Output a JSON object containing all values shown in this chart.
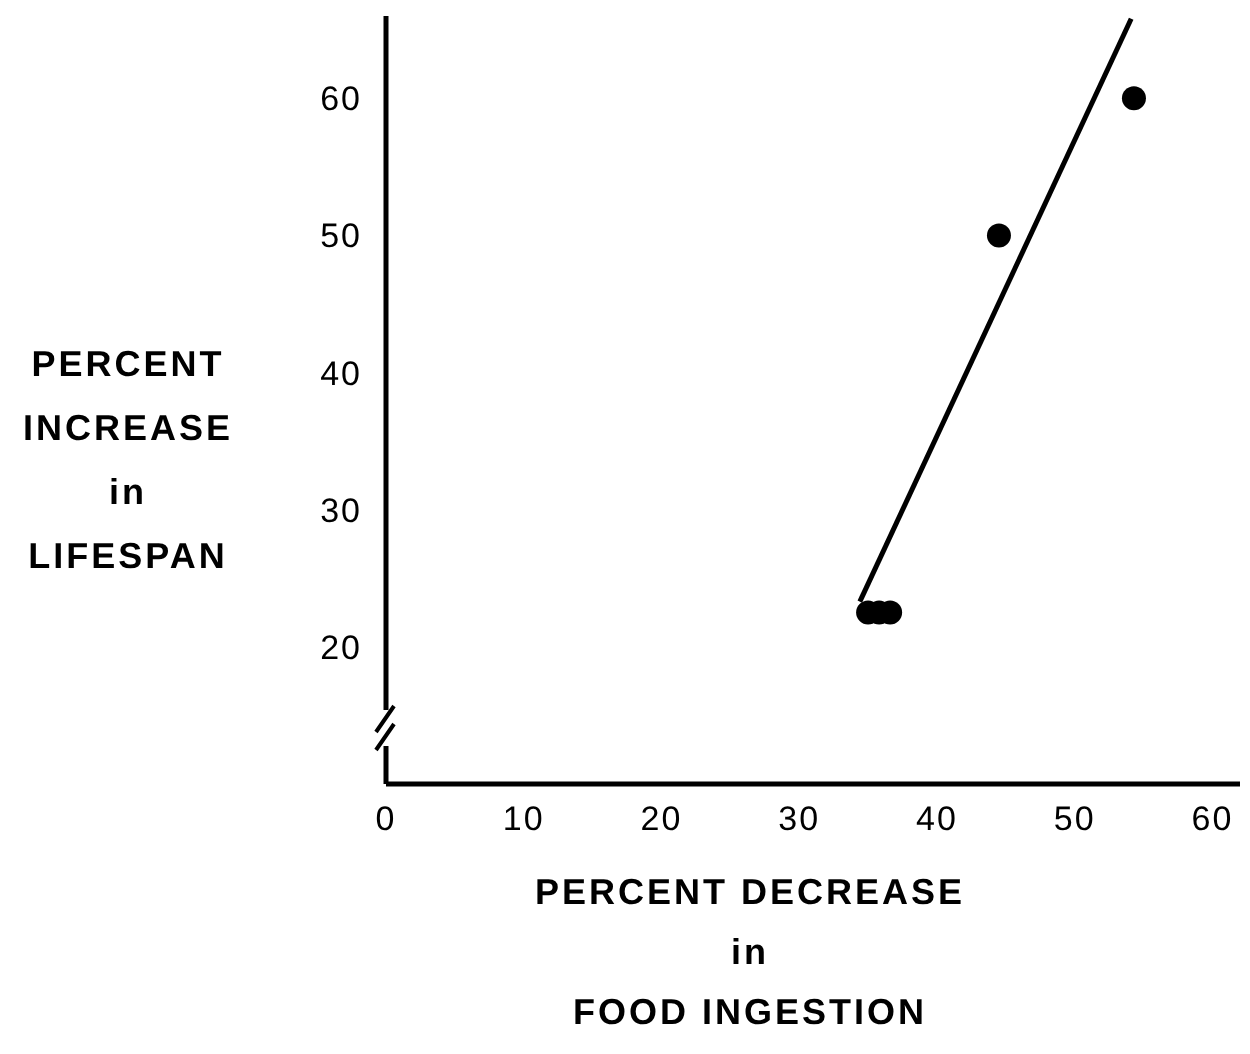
{
  "chart_data": {
    "type": "scatter",
    "xlabel": "PERCENT DECREASE\nin\nFOOD INGESTION",
    "ylabel": "PERCENT\nINCREASE\nin\nLIFESPAN",
    "xlim": [
      0,
      62
    ],
    "ylim": [
      10,
      66
    ],
    "xticks": [
      0,
      10,
      20,
      30,
      40,
      50,
      60
    ],
    "yticks": [
      20,
      30,
      40,
      50,
      60
    ],
    "grid": false,
    "marker": "circle",
    "series": [
      {
        "color": "#000000",
        "x": [
          35,
          35.8,
          36.6,
          44.5,
          54.3
        ],
        "values": [
          22.5,
          22.5,
          22.5,
          50,
          60
        ]
      },
      {
        "type": "line",
        "color": "#000000",
        "line_style": "solid",
        "marker": "none",
        "x": [
          34.4,
          54.1
        ],
        "values": [
          23.3,
          65.8
        ]
      }
    ]
  }
}
